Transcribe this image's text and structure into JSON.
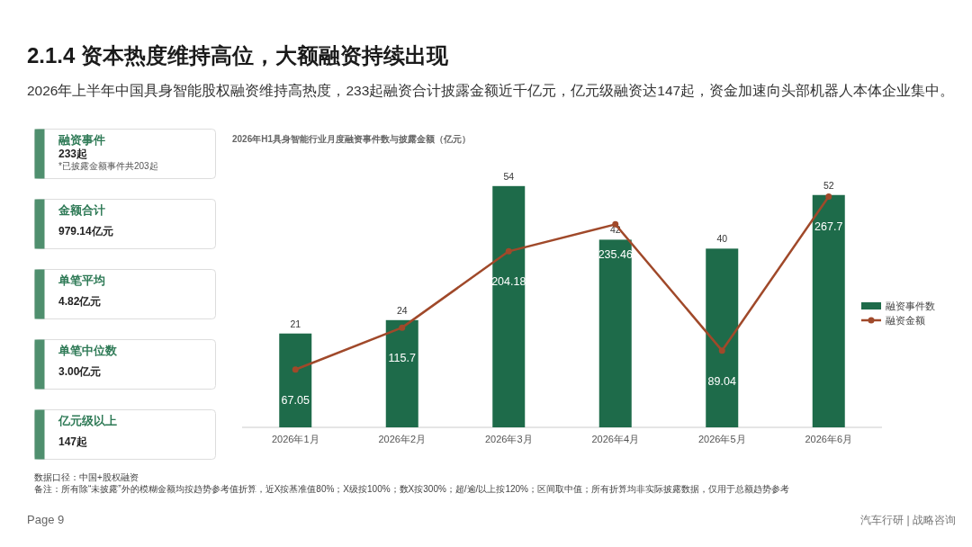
{
  "chart_data": [
    {
      "type": "other",
      "title": "2.1.4 资本热度维持高位，大额融资持续出现",
      "subtitle": "2026年上半年中国具身智能股权融资维持高热度，233起融资合计披露金额近千亿元，亿元级融资达147起，资金加速向头部机器人本体企业集中。",
      "annotations": [
        "Page 9",
        "汽车行研 | 战略咨询"
      ]
    },
    {
      "type": "other",
      "title": "融资事件",
      "annotations": [
        "233起",
        "*已披露金额事件共203起"
      ]
    },
    {
      "type": "other",
      "title": "金额合计",
      "annotations": [
        "979.14亿元"
      ]
    },
    {
      "type": "other",
      "title": "单笔平均",
      "annotations": [
        "4.82亿元"
      ]
    },
    {
      "type": "other",
      "title": "单笔中位数",
      "annotations": [
        "3.00亿元"
      ]
    },
    {
      "type": "other",
      "title": "亿元级以上",
      "annotations": [
        "147起"
      ]
    },
    {
      "type": "bar",
      "title": "2026年H1具身智能行业月度融资事件数与披露金额（亿元）",
      "categories": [
        "2026年1月",
        "2026年2月",
        "2026年3月",
        "2026年4月",
        "2026年5月",
        "2026年6月"
      ],
      "series": [
        {
          "name": "融资事件数",
          "type": "bar",
          "color": "#1e6b4a",
          "values": [
            21,
            24,
            54,
            42,
            40,
            52
          ]
        },
        {
          "name": "融资金额",
          "type": "line",
          "axis": "y2",
          "color": "#a0492a",
          "values": [
            67.05,
            115.7,
            204.18,
            235.46,
            89.04,
            267.7
          ]
        }
      ],
      "tick_labels": "x",
      "data_labels": true,
      "legend": "right",
      "marker": "circle",
      "annotations": [
        "数据口径：中国+股权融资",
        "备注：所有除“未披露”外的模糊金额均按趋势参考值折算，近X按基准值80%；X级按100%；数X按300%；超/逾/以上按120%；区间取中值；所有折算均非实际披露数据，仅用于总额趋势参考"
      ]
    }
  ]
}
